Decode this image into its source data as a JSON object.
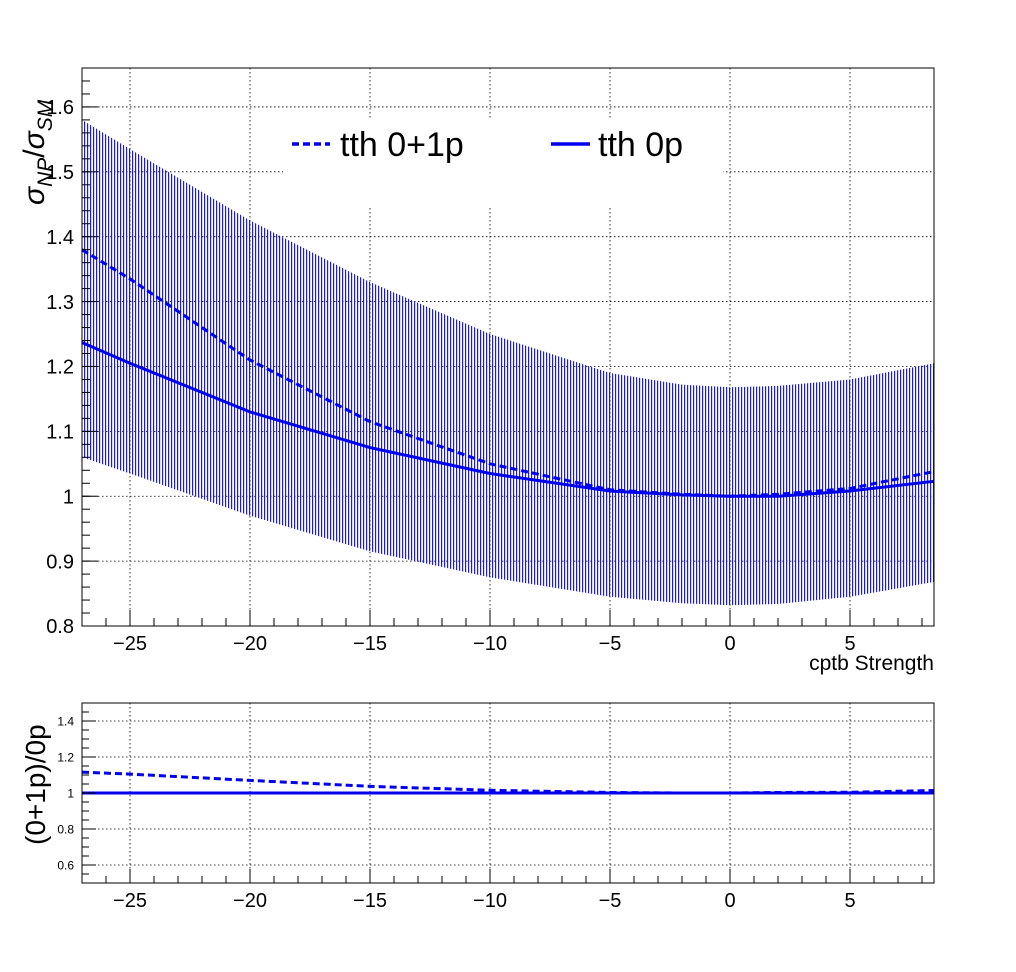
{
  "colors": {
    "series": "#0000ee",
    "band": "#1a1aee",
    "frame": "#000000",
    "grid": "#000000",
    "background": "#ffffff"
  },
  "chart_data": [
    {
      "type": "line",
      "panel": "main",
      "xlabel": "cptb Strength",
      "ylabel": {
        "base": "σ",
        "sub": "NP",
        "sep": "/",
        "base2": "σ",
        "sub2": "SM"
      },
      "xlim": [
        -27,
        8.5
      ],
      "ylim": [
        0.8,
        1.66
      ],
      "x_ticks": [
        -25,
        -20,
        -15,
        -10,
        -5,
        0,
        5
      ],
      "x_tick_labels": [
        "−25",
        "−20",
        "−15",
        "−10",
        "−5",
        "0",
        "5"
      ],
      "y_ticks": [
        0.8,
        0.9,
        1.0,
        1.1,
        1.2,
        1.3,
        1.4,
        1.5,
        1.6
      ],
      "y_tick_labels": [
        "0.8",
        "0.9",
        "1",
        "1.1",
        "1.2",
        "1.3",
        "1.4",
        "1.5",
        "1.6"
      ],
      "grid": true,
      "legend": {
        "placement": "top",
        "entries": [
          {
            "label": "tth 0+1p",
            "style": "dashed"
          },
          {
            "label": "tth 0p",
            "style": "solid"
          }
        ]
      },
      "x": [
        -27,
        -25,
        -20,
        -15,
        -10,
        -5,
        -2,
        0,
        2,
        5,
        8.5
      ],
      "series": [
        {
          "name": "tth 0+1p",
          "style": "dashed",
          "values": [
            1.38,
            1.335,
            1.21,
            1.115,
            1.05,
            1.01,
            1.003,
            1.0,
            1.003,
            1.012,
            1.038
          ]
        },
        {
          "name": "tth 0p",
          "style": "solid",
          "values": [
            1.237,
            1.205,
            1.13,
            1.075,
            1.035,
            1.008,
            1.002,
            1.0,
            1.0,
            1.008,
            1.023
          ]
        }
      ],
      "band": {
        "x": [
          -27,
          -25,
          -20,
          -15,
          -10,
          -5,
          -2,
          0,
          2,
          5,
          8.5
        ],
        "upper": [
          1.58,
          1.535,
          1.425,
          1.33,
          1.25,
          1.19,
          1.172,
          1.168,
          1.17,
          1.18,
          1.205
        ],
        "lower": [
          1.06,
          1.035,
          0.97,
          0.915,
          0.875,
          0.845,
          0.835,
          0.832,
          0.834,
          0.845,
          0.868
        ]
      }
    },
    {
      "type": "line",
      "panel": "ratio",
      "xlabel": "",
      "ylabel": "(0+1p)/0p",
      "xlim": [
        -27,
        8.5
      ],
      "ylim": [
        0.5,
        1.5
      ],
      "x_ticks": [
        -25,
        -20,
        -15,
        -10,
        -5,
        0,
        5
      ],
      "x_tick_labels": [
        "−25",
        "−20",
        "−15",
        "−10",
        "−5",
        "0",
        "5"
      ],
      "y_ticks": [
        0.6,
        0.8,
        1.0,
        1.2,
        1.4
      ],
      "y_tick_labels": [
        "0.6",
        "0.8",
        "1",
        "1.2",
        "1.4"
      ],
      "grid": true,
      "x": [
        -27,
        -25,
        -20,
        -15,
        -10,
        -5,
        -2,
        0,
        2,
        5,
        8.5
      ],
      "series": [
        {
          "name": "tth 0+1p",
          "style": "dashed",
          "values": [
            1.116,
            1.105,
            1.07,
            1.037,
            1.015,
            1.003,
            1.0,
            1.0,
            1.003,
            1.004,
            1.014
          ]
        },
        {
          "name": "tth 0p",
          "style": "solid",
          "values": [
            1.0,
            1.0,
            1.0,
            1.0,
            1.0,
            1.0,
            1.0,
            1.0,
            1.0,
            1.0,
            1.0
          ]
        }
      ]
    }
  ]
}
